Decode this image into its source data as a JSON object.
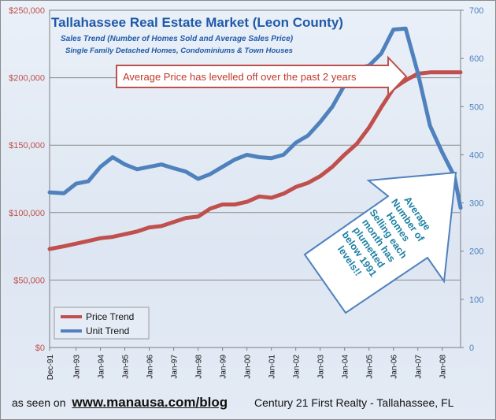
{
  "chart_data": {
    "type": "line",
    "title": "Tallahassee Real Estate Market (Leon County)",
    "subtitle": "Sales Trend (Number of Homes Sold and Average Sales Price)",
    "subtitle2": "Single Family Detached Homes, Condominiums & Town Houses",
    "x_tick_labels": [
      "Dec-91",
      "Jan-93",
      "Jan-94",
      "Jan-95",
      "Jan-96",
      "Jan-97",
      "Jan-98",
      "Jan-99",
      "Jan-00",
      "Jan-01",
      "Jan-02",
      "Jan-03",
      "Jan-04",
      "Jan-05",
      "Jan-06",
      "Jan-07",
      "Jan-08"
    ],
    "y_left_tick_labels": [
      "$0",
      "$50,000",
      "$100,000",
      "$150,000",
      "$200,000",
      "$250,000"
    ],
    "y_left_lim": [
      0,
      250000
    ],
    "y_right_tick_labels": [
      "0",
      "100",
      "200",
      "300",
      "400",
      "500",
      "600",
      "700"
    ],
    "y_right_lim": [
      0,
      700
    ],
    "x_lim": [
      1991.917,
      2008.75
    ],
    "grid": "horizontal",
    "legend_placement": "bottom-left",
    "series": [
      {
        "name": "Price Trend",
        "axis": "left",
        "color": "#c0504d",
        "points": [
          [
            1991.917,
            73000
          ],
          [
            1992.5,
            75000
          ],
          [
            1993.0,
            77000
          ],
          [
            1993.5,
            79000
          ],
          [
            1994.0,
            81000
          ],
          [
            1994.5,
            82000
          ],
          [
            1995.0,
            84000
          ],
          [
            1995.5,
            86000
          ],
          [
            1996.0,
            89000
          ],
          [
            1996.5,
            90000
          ],
          [
            1997.0,
            93000
          ],
          [
            1997.5,
            96000
          ],
          [
            1998.0,
            97000
          ],
          [
            1998.5,
            103000
          ],
          [
            1999.0,
            106000
          ],
          [
            1999.5,
            106000
          ],
          [
            2000.0,
            108000
          ],
          [
            2000.5,
            112000
          ],
          [
            2001.0,
            111000
          ],
          [
            2001.5,
            114000
          ],
          [
            2002.0,
            119000
          ],
          [
            2002.5,
            122000
          ],
          [
            2003.0,
            127000
          ],
          [
            2003.5,
            134000
          ],
          [
            2004.0,
            143000
          ],
          [
            2004.5,
            151000
          ],
          [
            2005.0,
            163000
          ],
          [
            2005.5,
            178000
          ],
          [
            2006.0,
            192000
          ],
          [
            2006.5,
            198000
          ],
          [
            2007.0,
            203000
          ],
          [
            2007.5,
            204000
          ],
          [
            2008.0,
            204000
          ],
          [
            2008.5,
            204000
          ],
          [
            2008.75,
            204000
          ]
        ]
      },
      {
        "name": "Unit Trend",
        "axis": "right",
        "color": "#4f81bd",
        "points": [
          [
            1991.917,
            322
          ],
          [
            1992.5,
            320
          ],
          [
            1993.0,
            340
          ],
          [
            1993.5,
            345
          ],
          [
            1994.0,
            375
          ],
          [
            1994.5,
            395
          ],
          [
            1995.0,
            380
          ],
          [
            1995.5,
            370
          ],
          [
            1996.0,
            375
          ],
          [
            1996.5,
            380
          ],
          [
            1997.0,
            372
          ],
          [
            1997.5,
            365
          ],
          [
            1998.0,
            350
          ],
          [
            1998.5,
            360
          ],
          [
            1999.0,
            375
          ],
          [
            1999.5,
            390
          ],
          [
            2000.0,
            400
          ],
          [
            2000.5,
            395
          ],
          [
            2001.0,
            393
          ],
          [
            2001.5,
            400
          ],
          [
            2002.0,
            425
          ],
          [
            2002.5,
            440
          ],
          [
            2003.0,
            468
          ],
          [
            2003.5,
            500
          ],
          [
            2004.0,
            545
          ],
          [
            2004.5,
            580
          ],
          [
            2005.0,
            585
          ],
          [
            2005.5,
            610
          ],
          [
            2006.0,
            660
          ],
          [
            2006.5,
            662
          ],
          [
            2007.0,
            570
          ],
          [
            2007.5,
            460
          ],
          [
            2008.0,
            405
          ],
          [
            2008.5,
            355
          ],
          [
            2008.75,
            290
          ]
        ]
      }
    ],
    "annotations": {
      "price_note": "Average Price has levelled off over the past 2 years",
      "unit_note": [
        "Average",
        "Number of",
        "Homes",
        "Selling each",
        "month has",
        "plumetted",
        "below 1991",
        "levels!!"
      ]
    }
  },
  "footer": {
    "seen_on": "as seen on",
    "url": "www.manausa.com/blog",
    "company": "Century 21 First Realty - Tallahassee, FL"
  },
  "colors": {
    "title": "#1f5aa8",
    "subtitle": "#1f5aa8",
    "arrow_fill": "#ffffff",
    "price_arrow_border": "#c0504d",
    "unit_arrow_border": "#4f81bd",
    "unit_note_text": "#1b7fa3"
  }
}
